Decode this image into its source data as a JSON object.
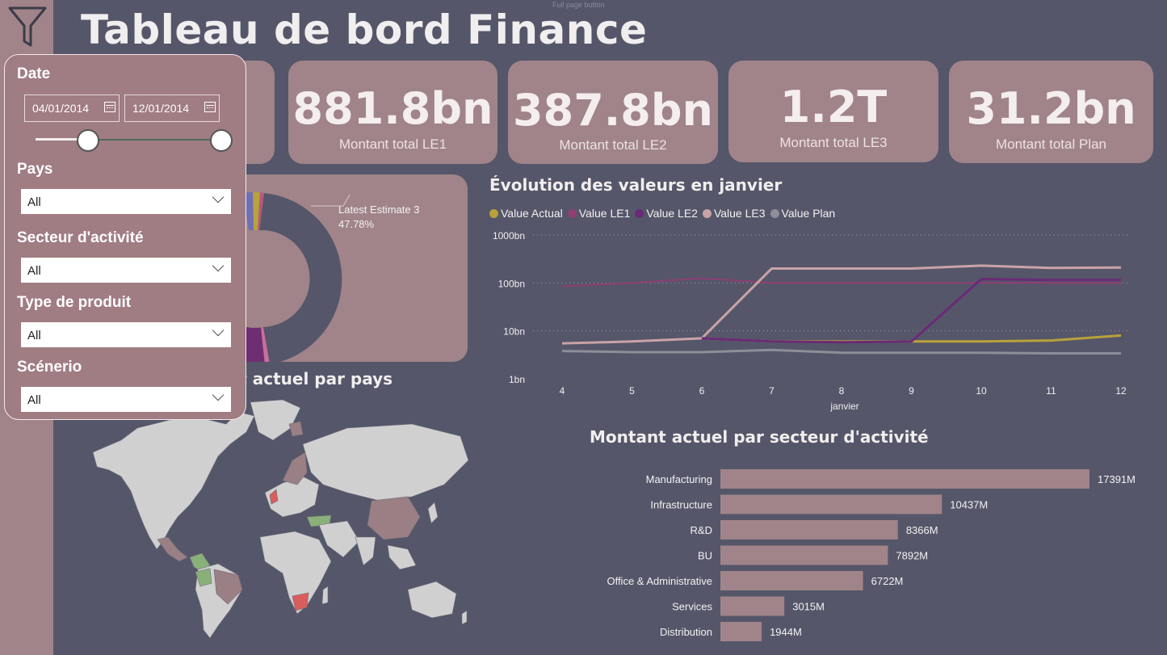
{
  "page": {
    "title": "Tableau de bord Finance",
    "full_page_tip": "Full page button"
  },
  "kpis": [
    {
      "value": "881.8bn",
      "label": "Montant total LE1"
    },
    {
      "value": "387.8bn",
      "label": "Montant total LE2"
    },
    {
      "value": "1.2T",
      "label": "Montant total LE3"
    },
    {
      "value": "31.2bn",
      "label": "Montant total Plan"
    }
  ],
  "filters": {
    "date_label": "Date",
    "date_start": "04/01/2014",
    "date_end": "12/01/2014",
    "pays_label": "Pays",
    "pays_value": "All",
    "secteur_label": "Secteur d'activité",
    "secteur_value": "All",
    "type_label": "Type de produit",
    "type_value": "All",
    "scenario_label": "Scénerio",
    "scenario_value": "All"
  },
  "donut": {
    "label_name": "Latest Estimate 3",
    "label_pct": "47.78%"
  },
  "map": {
    "title_visible": "nt actuel par pays"
  },
  "line_chart": {
    "title": "Évolution des valeurs en janvier",
    "legend": [
      {
        "name": "Value Actual",
        "color": "#b8a23a"
      },
      {
        "name": "Value LE1",
        "color": "#8e3f74"
      },
      {
        "name": "Value LE2",
        "color": "#6a2a78"
      },
      {
        "name": "Value LE3",
        "color": "#c9a3a6"
      },
      {
        "name": "Value Plan",
        "color": "#8e8e99"
      }
    ],
    "y_ticks": [
      "1000bn",
      "100bn",
      "10bn",
      "1bn"
    ],
    "x_label": "janvier"
  },
  "bar_chart": {
    "title": "Montant actuel par secteur d'activité"
  },
  "chart_data": [
    {
      "type": "line",
      "title": "Évolution des valeurs en janvier",
      "xlabel": "janvier",
      "ylabel": "",
      "y_scale": "log",
      "ylim_bn": [
        1,
        1000
      ],
      "x": [
        4,
        5,
        6,
        7,
        8,
        9,
        10,
        11,
        12
      ],
      "series": [
        {
          "name": "Value Actual",
          "values_bn": [
            null,
            null,
            7,
            6,
            6,
            6,
            6,
            6.3,
            8
          ]
        },
        {
          "name": "Value LE1",
          "values_bn": [
            85,
            100,
            125,
            100,
            100,
            100,
            100,
            100,
            100
          ]
        },
        {
          "name": "Value LE2",
          "values_bn": [
            null,
            null,
            7,
            6,
            5.8,
            6,
            120,
            115,
            115
          ]
        },
        {
          "name": "Value LE3",
          "values_bn": [
            5.5,
            6,
            7,
            200,
            200,
            200,
            230,
            205,
            210
          ]
        },
        {
          "name": "Value Plan",
          "values_bn": [
            3.8,
            3.6,
            3.6,
            4,
            3.5,
            3.5,
            3.5,
            3.4,
            3.4
          ]
        }
      ]
    },
    {
      "type": "bar",
      "orientation": "horizontal",
      "title": "Montant actuel par secteur d'activité",
      "categories": [
        "Manufacturing",
        "Infrastructure",
        "R&D",
        "BU",
        "Office & Administrative",
        "Services",
        "Distribution"
      ],
      "values": [
        17391,
        10437,
        8366,
        7892,
        6722,
        3015,
        1944
      ],
      "labels": [
        "17391M",
        "10437M",
        "8366M",
        "7892M",
        "6722M",
        "3015M",
        "1944M"
      ],
      "xlim": [
        0,
        17391
      ]
    },
    {
      "type": "pie",
      "style": "donut",
      "slices": [
        {
          "name": "Latest Estimate 3",
          "value": 47.78,
          "label": "47.78%"
        }
      ]
    }
  ]
}
